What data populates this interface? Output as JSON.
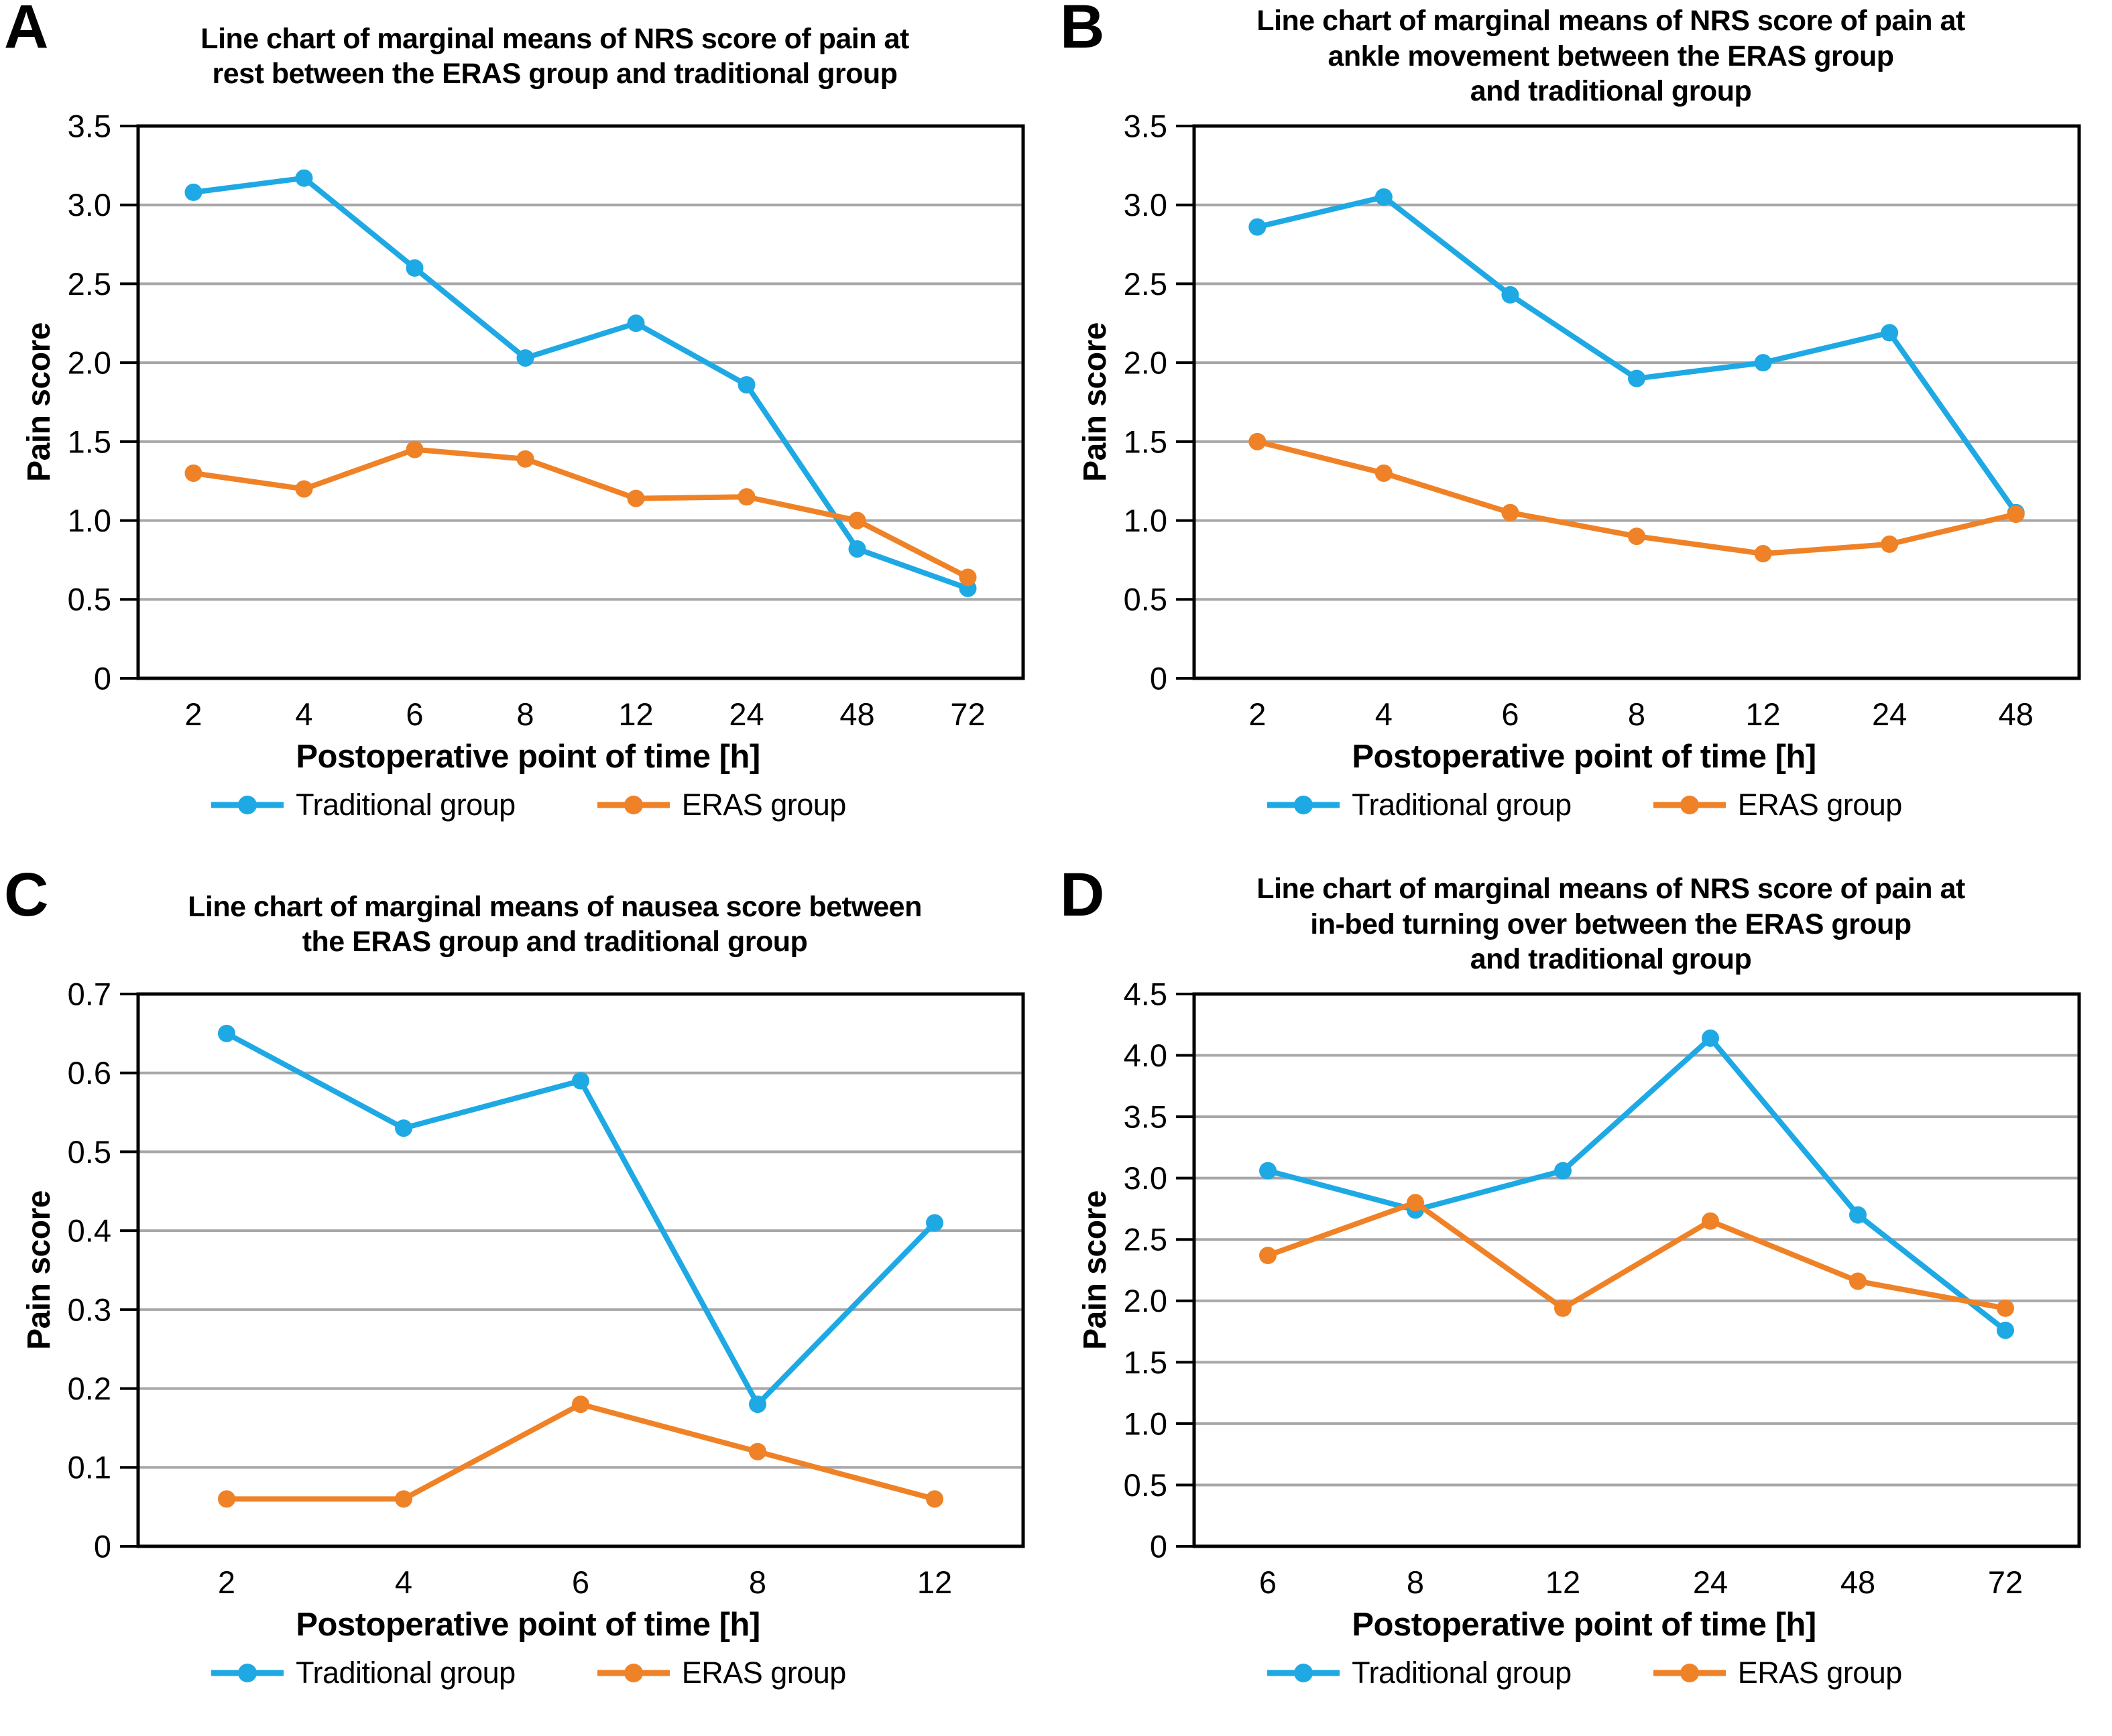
{
  "figure_description": "Four-panel line chart figure comparing ERAS group vs traditional group",
  "legend": {
    "items": [
      {
        "label": "Traditional group",
        "color_key": "traditional"
      },
      {
        "label": "ERAS group",
        "color_key": "eras"
      }
    ],
    "position": "bottom"
  },
  "colors": {
    "traditional": "#1ea9e4",
    "eras": "#ef8227",
    "grid": "#a7a7aa",
    "axis": "#000000",
    "text": "#000000"
  },
  "chart_data": [
    {
      "panel": "A",
      "type": "line",
      "title": "Line chart of marginal means of NRS score of pain at\nrest between the ERAS group and traditional group",
      "xlabel": "Postoperative point of time [h]",
      "ylabel": "Pain score",
      "categories": [
        "2",
        "4",
        "6",
        "8",
        "12",
        "24",
        "48",
        "72"
      ],
      "ylim": [
        0,
        3.5
      ],
      "ytick_step": 0.5,
      "grid": true,
      "legend_position": "bottom",
      "series": [
        {
          "name": "Traditional group",
          "color_key": "traditional",
          "values": [
            3.08,
            3.17,
            2.6,
            2.03,
            2.25,
            1.86,
            0.82,
            0.57
          ]
        },
        {
          "name": "ERAS group",
          "color_key": "eras",
          "values": [
            1.3,
            1.2,
            1.45,
            1.39,
            1.14,
            1.15,
            1.0,
            0.64
          ]
        }
      ]
    },
    {
      "panel": "B",
      "type": "line",
      "title": "Line chart of marginal means of NRS score of pain at\nankle movement between the ERAS group\nand traditional group",
      "xlabel": "Postoperative point of time [h]",
      "ylabel": "Pain score",
      "categories": [
        "2",
        "4",
        "6",
        "8",
        "12",
        "24",
        "48"
      ],
      "ylim": [
        0,
        3.5
      ],
      "ytick_step": 0.5,
      "grid": true,
      "legend_position": "bottom",
      "series": [
        {
          "name": "Traditional group",
          "color_key": "traditional",
          "values": [
            2.86,
            3.05,
            2.43,
            1.9,
            2.0,
            2.19,
            1.05
          ]
        },
        {
          "name": "ERAS group",
          "color_key": "eras",
          "values": [
            1.5,
            1.3,
            1.05,
            0.9,
            0.79,
            0.85,
            1.04
          ]
        }
      ]
    },
    {
      "panel": "C",
      "type": "line",
      "title": "Line chart of marginal means of nausea score between\nthe ERAS group and traditional group",
      "xlabel": "Postoperative point of time [h]",
      "ylabel": "Pain score",
      "categories": [
        "2",
        "4",
        "6",
        "8",
        "12"
      ],
      "ylim": [
        0,
        0.7
      ],
      "ytick_step": 0.1,
      "grid": true,
      "legend_position": "bottom",
      "series": [
        {
          "name": "Traditional group",
          "color_key": "traditional",
          "values": [
            0.65,
            0.53,
            0.59,
            0.18,
            0.41
          ]
        },
        {
          "name": "ERAS group",
          "color_key": "eras",
          "values": [
            0.06,
            0.06,
            0.18,
            0.12,
            0.06
          ]
        }
      ]
    },
    {
      "panel": "D",
      "type": "line",
      "title": "Line chart of marginal means of NRS score of pain at\nin-bed turning over between the ERAS group\nand traditional group",
      "xlabel": "Postoperative point of time [h]",
      "ylabel": "Pain score",
      "categories": [
        "6",
        "8",
        "12",
        "24",
        "48",
        "72"
      ],
      "ylim": [
        0,
        4.5
      ],
      "ytick_step": 0.5,
      "grid": true,
      "legend_position": "bottom",
      "series": [
        {
          "name": "Traditional group",
          "color_key": "traditional",
          "values": [
            3.06,
            2.74,
            3.06,
            4.14,
            2.7,
            1.76
          ]
        },
        {
          "name": "ERAS group",
          "color_key": "eras",
          "values": [
            2.37,
            2.8,
            1.94,
            2.65,
            2.16,
            1.94
          ]
        }
      ]
    }
  ]
}
